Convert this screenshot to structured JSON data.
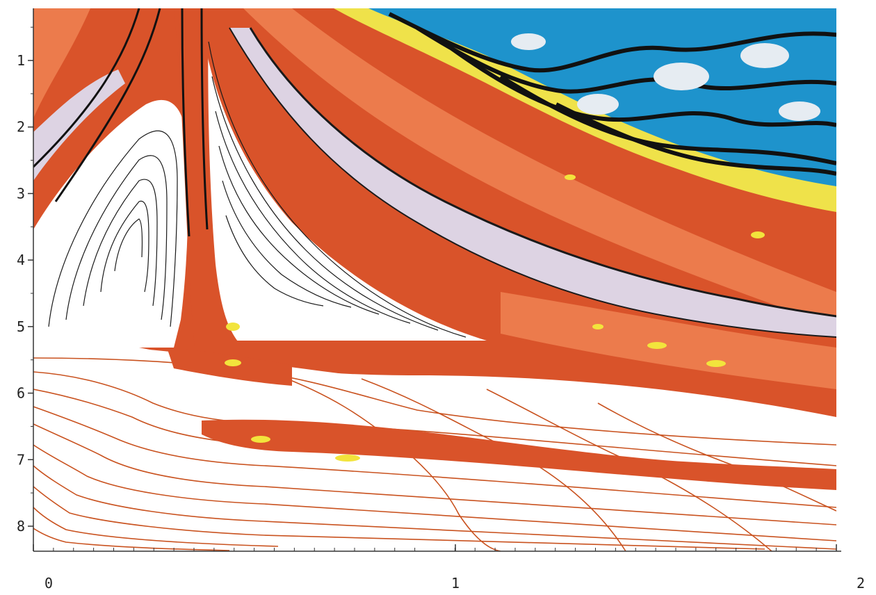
{
  "chart_data": {
    "type": "heatmap",
    "title": "",
    "xlabel": "",
    "ylabel": "",
    "xlim": [
      0,
      2
    ],
    "ylim": [
      8.4,
      0.3
    ],
    "y_axis_inverted": true,
    "x_ticks": [
      "0",
      "1",
      "2"
    ],
    "y_ticks": [
      "1",
      "2",
      "3",
      "4",
      "5",
      "6",
      "7",
      "8"
    ],
    "grid": false,
    "colors": {
      "background": "#ffffff",
      "band_orange": "#d9532a",
      "band_light_orange": "#ef8a5c",
      "band_lavender": "#ddd3e3",
      "band_yellow": "#efe24a",
      "band_blue": "#1e93cc",
      "band_black": "#111111",
      "contour_black": "#1a1a1a",
      "contour_orange": "#c9521f",
      "axis": "#333333"
    },
    "regions": [
      {
        "name": "blue-black high band",
        "x_range": [
          0.8,
          2.0
        ],
        "y_range": [
          0.3,
          2.8
        ],
        "color": "#1e93cc"
      },
      {
        "name": "yellow transition band",
        "x_range": [
          0.8,
          2.0
        ],
        "y_range": [
          0.3,
          3.2
        ],
        "color": "#efe24a"
      },
      {
        "name": "white lobe left",
        "x_range": [
          0.0,
          0.4
        ],
        "y_range": [
          2.0,
          5.2
        ],
        "color": "#ffffff"
      },
      {
        "name": "white lobe centre",
        "x_range": [
          0.4,
          0.9
        ],
        "y_range": [
          0.5,
          5.3
        ],
        "color": "#ffffff"
      },
      {
        "name": "lavender ridge",
        "x_range": [
          0.6,
          2.0
        ],
        "y_range": [
          2.0,
          5.0
        ],
        "color": "#ddd3e3"
      },
      {
        "name": "orange bands",
        "x_range": [
          0.0,
          2.0
        ],
        "y_range": [
          0.3,
          7.8
        ],
        "color": "#d9532a"
      },
      {
        "name": "white lower contours",
        "x_range": [
          0.0,
          2.0
        ],
        "y_range": [
          5.0,
          8.4
        ],
        "color": "#ffffff"
      }
    ]
  }
}
